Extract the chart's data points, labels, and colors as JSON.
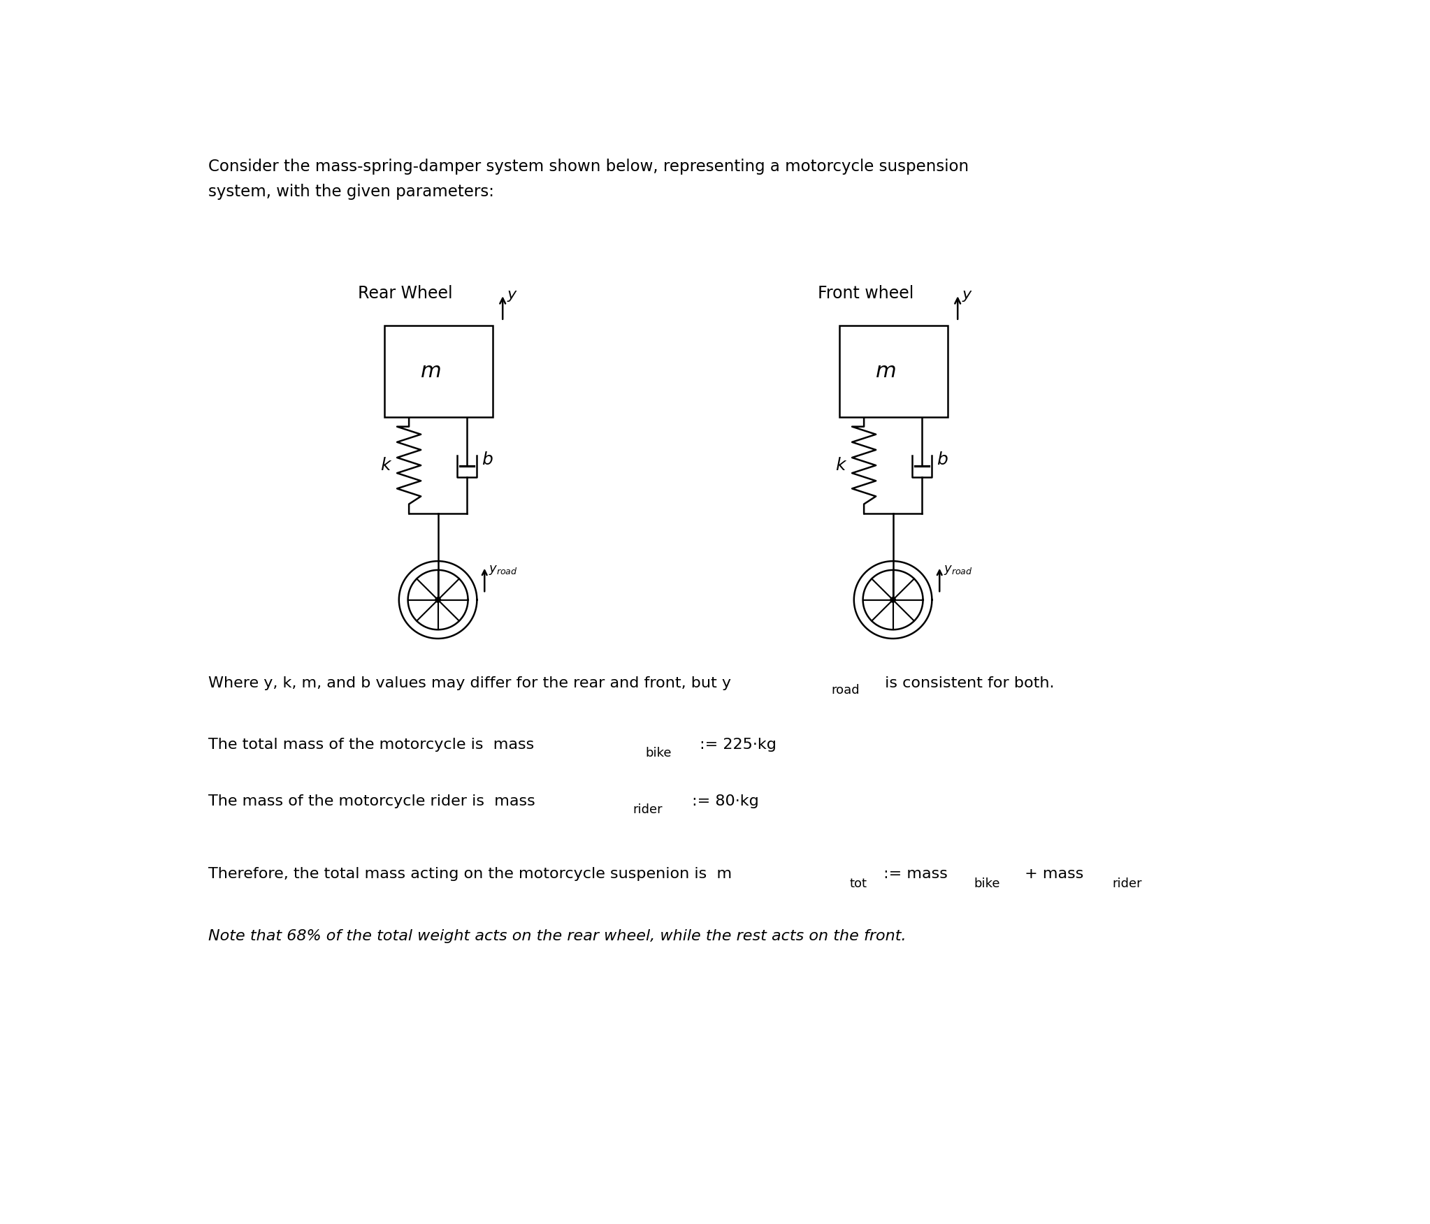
{
  "bg_color": "#ffffff",
  "text_color": "#000000",
  "rear_wheel_label": "Rear Wheel",
  "front_wheel_label": "Front wheel",
  "line5": "Note that 68% of the total weight acts on the rear wheel, while the rest acts on the front.",
  "diagram_lw": 1.8
}
